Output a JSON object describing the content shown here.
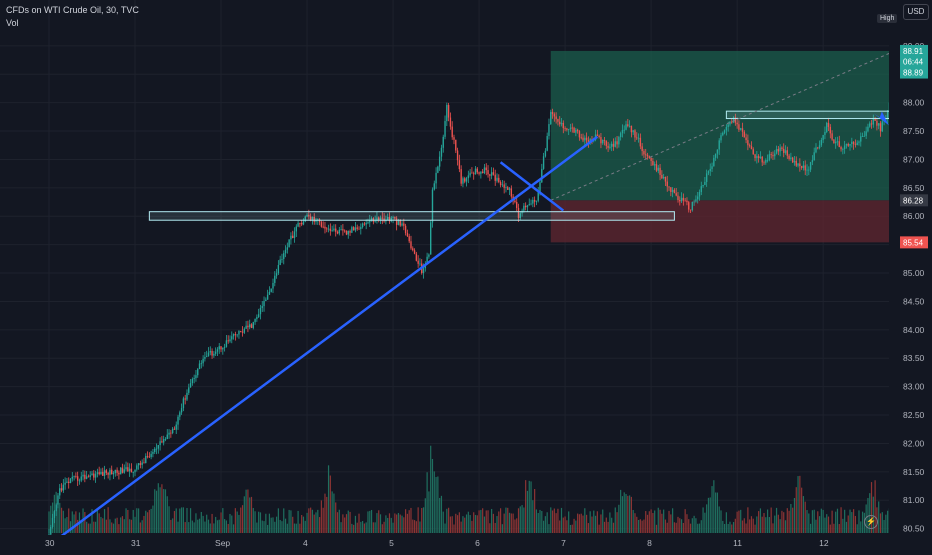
{
  "legend": {
    "title": "CFDs on WTI Crude Oil, 30, TVC",
    "volume_label": "Vol"
  },
  "currency_button": "USD",
  "high_label": "High",
  "colors": {
    "background": "#131722",
    "grid": "#1e222d",
    "up": "#26a69a",
    "down": "#ef5350",
    "up_volume": "#1f6f5f",
    "down_volume": "#8c3434",
    "trendline": "#2962ff",
    "profit_zone": "#1b5e4c",
    "loss_zone": "#5c2630",
    "zone_box": "#b2ebf2"
  },
  "chart_data": {
    "type": "candlestick",
    "instrument": "CFDs on WTI Crude Oil",
    "interval": "30",
    "source": "TVC",
    "ylim": [
      80.3,
      89.2
    ],
    "y_ticks": [
      80.5,
      81.0,
      81.5,
      82.0,
      82.5,
      83.0,
      83.5,
      84.0,
      84.5,
      85.0,
      85.5,
      86.0,
      86.5,
      87.0,
      87.5,
      88.0,
      88.5,
      89.0
    ],
    "y_tick_labels": [
      "80.50",
      "81.00",
      "81.50",
      "82.00",
      "82.50",
      "83.00",
      "83.50",
      "84.00",
      "84.50",
      "85.00",
      "85.50",
      "86.00",
      "86.50",
      "87.00",
      "87.50",
      "88.00",
      "88.50",
      "89.00"
    ],
    "x_ticks": [
      {
        "label": "30",
        "index": 0
      },
      {
        "label": "31",
        "index": 48
      },
      {
        "label": "Sep",
        "index": 96
      },
      {
        "label": "4",
        "index": 144
      },
      {
        "label": "5",
        "index": 192
      },
      {
        "label": "6",
        "index": 240
      },
      {
        "label": "7",
        "index": 288
      },
      {
        "label": "8",
        "index": 336
      },
      {
        "label": "11",
        "index": 384
      },
      {
        "label": "12",
        "index": 432
      }
    ],
    "bar_count": 472,
    "price_path": [
      [
        0,
        80.35
      ],
      [
        6,
        81.2
      ],
      [
        12,
        81.35
      ],
      [
        24,
        81.45
      ],
      [
        36,
        81.5
      ],
      [
        48,
        81.55
      ],
      [
        60,
        81.9
      ],
      [
        70,
        82.3
      ],
      [
        78,
        83.0
      ],
      [
        86,
        83.5
      ],
      [
        96,
        83.7
      ],
      [
        104,
        83.9
      ],
      [
        114,
        84.1
      ],
      [
        122,
        84.6
      ],
      [
        130,
        85.3
      ],
      [
        138,
        85.8
      ],
      [
        144,
        86.0
      ],
      [
        150,
        85.9
      ],
      [
        158,
        85.75
      ],
      [
        166,
        85.7
      ],
      [
        174,
        85.85
      ],
      [
        182,
        85.95
      ],
      [
        192,
        85.95
      ],
      [
        198,
        85.8
      ],
      [
        204,
        85.3
      ],
      [
        208,
        85.05
      ],
      [
        212,
        85.3
      ],
      [
        214,
        86.5
      ],
      [
        218,
        87.0
      ],
      [
        222,
        87.9
      ],
      [
        226,
        87.3
      ],
      [
        230,
        86.6
      ],
      [
        236,
        86.8
      ],
      [
        244,
        86.8
      ],
      [
        252,
        86.6
      ],
      [
        258,
        86.4
      ],
      [
        262,
        86.0
      ],
      [
        266,
        86.2
      ],
      [
        272,
        86.3
      ],
      [
        276,
        87.0
      ],
      [
        280,
        87.8
      ],
      [
        286,
        87.6
      ],
      [
        292,
        87.55
      ],
      [
        300,
        87.3
      ],
      [
        306,
        87.4
      ],
      [
        312,
        87.2
      ],
      [
        318,
        87.35
      ],
      [
        322,
        87.6
      ],
      [
        328,
        87.4
      ],
      [
        334,
        87.0
      ],
      [
        340,
        86.8
      ],
      [
        346,
        86.5
      ],
      [
        352,
        86.3
      ],
      [
        358,
        86.15
      ],
      [
        364,
        86.5
      ],
      [
        370,
        86.9
      ],
      [
        376,
        87.5
      ],
      [
        382,
        87.7
      ],
      [
        388,
        87.4
      ],
      [
        394,
        87.05
      ],
      [
        400,
        86.95
      ],
      [
        406,
        87.2
      ],
      [
        412,
        87.1
      ],
      [
        418,
        86.9
      ],
      [
        424,
        86.85
      ],
      [
        430,
        87.3
      ],
      [
        434,
        87.6
      ],
      [
        438,
        87.3
      ],
      [
        444,
        87.2
      ],
      [
        450,
        87.3
      ],
      [
        456,
        87.5
      ],
      [
        460,
        87.7
      ],
      [
        464,
        87.55
      ],
      [
        468,
        87.8
      ],
      [
        470,
        88.3
      ],
      [
        472,
        88.91
      ]
    ],
    "volume_peaks": [
      {
        "index": 4,
        "height": 0.55
      },
      {
        "index": 62,
        "height": 0.75
      },
      {
        "index": 110,
        "height": 0.6
      },
      {
        "index": 156,
        "height": 0.7
      },
      {
        "index": 214,
        "height": 1.0
      },
      {
        "index": 268,
        "height": 0.72
      },
      {
        "index": 322,
        "height": 0.7
      },
      {
        "index": 370,
        "height": 0.68
      },
      {
        "index": 418,
        "height": 0.7
      },
      {
        "index": 460,
        "height": 0.62
      }
    ],
    "annotations": {
      "main_trendline": {
        "from": [
          4,
          80.3
        ],
        "to": [
          306,
          87.4
        ]
      },
      "short_trendline": {
        "from": [
          252,
          86.95
        ],
        "to": [
          287,
          86.1
        ]
      },
      "support_zone": {
        "from_index": 56,
        "to_index": 349,
        "top": 86.08,
        "bottom": 85.93
      },
      "resistance_zone": {
        "from_index": 378,
        "to_index": 491,
        "top": 87.85,
        "bottom": 87.72
      },
      "long_position": {
        "from_index": 280,
        "to_index": 488,
        "entry": 86.28,
        "target": 88.91,
        "stop": 85.54
      },
      "projection_dashed": {
        "from": [
          280,
          86.28
        ],
        "to": [
          472,
          88.91
        ]
      },
      "arrow_marker": {
        "index": 472,
        "price": 87.6
      }
    },
    "price_labels": [
      {
        "text": "88.91",
        "price": 88.91,
        "color": "#26a69a"
      },
      {
        "text": "06:44",
        "price": 88.72,
        "color": "#26a69a"
      },
      {
        "text": "88.89",
        "price": 88.53,
        "color": "#26a69a"
      },
      {
        "text": "86.28",
        "price": 86.28,
        "color": "#363a45"
      },
      {
        "text": "85.54",
        "price": 85.54,
        "color": "#ef5350"
      }
    ]
  }
}
